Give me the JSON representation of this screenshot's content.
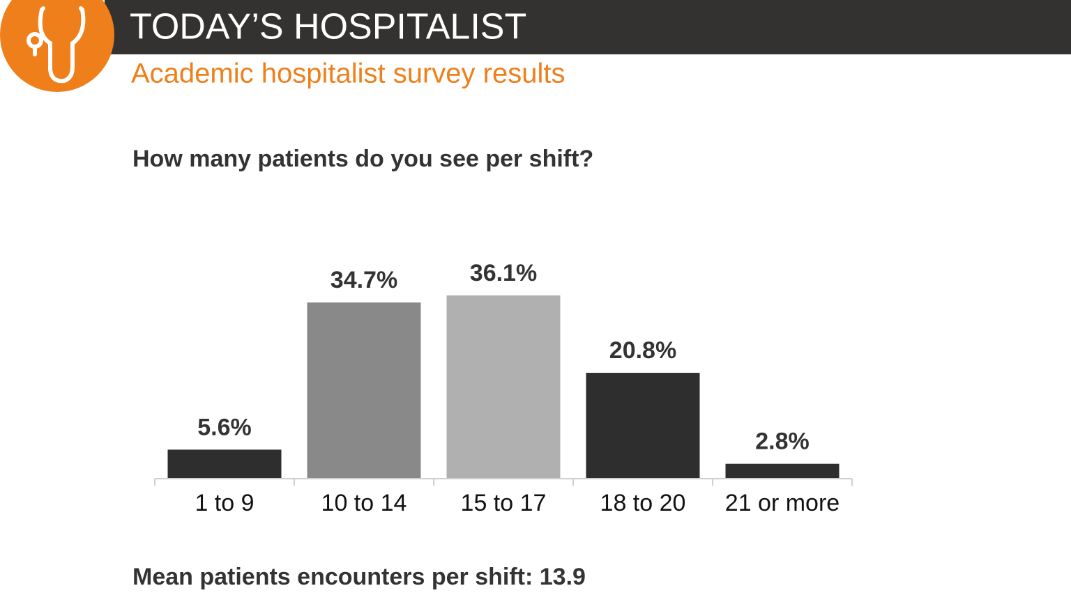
{
  "header": {
    "brand": "TODAY’S HOSPITALIST",
    "subtitle": "Academic hospitalist survey results"
  },
  "chart_data": {
    "type": "bar",
    "title": "How many patients do you see per shift?",
    "categories": [
      "1 to 9",
      "10 to 14",
      "15 to 17",
      "18 to 20",
      "21 or more"
    ],
    "values": [
      5.6,
      34.7,
      36.1,
      20.8,
      2.8
    ],
    "value_labels": [
      "5.6%",
      "34.7%",
      "36.1%",
      "20.8%",
      "2.8%"
    ],
    "colors": [
      "#2e2e2e",
      "#898989",
      "#b0b0b0",
      "#2e2e2e",
      "#2e2e2e"
    ],
    "note": "Mean patients encounters per shift: 13.9"
  }
}
